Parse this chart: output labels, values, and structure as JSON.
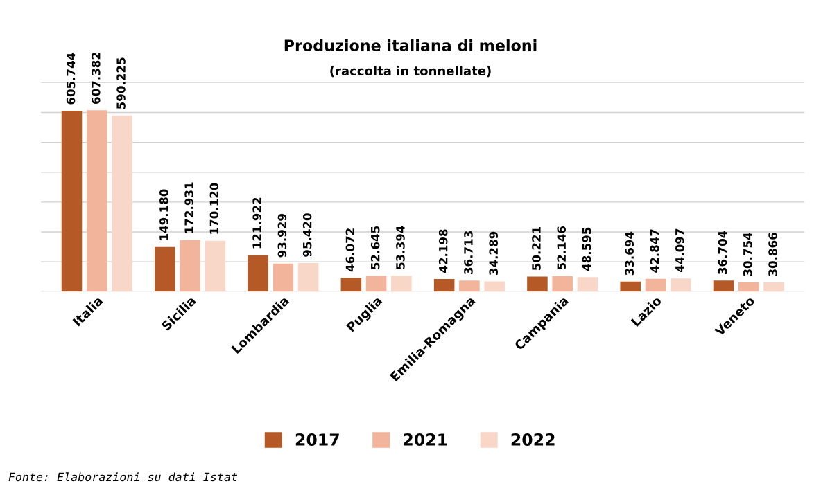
{
  "chart_data": {
    "type": "bar",
    "title": "Produzione italiana di meloni",
    "subtitle": "(raccolta in tonnellate)",
    "categories": [
      "Italia",
      "Sicilia",
      "Lombardia",
      "Puglia",
      "Emilia-Romagna",
      "Campania",
      "Lazio",
      "Veneto"
    ],
    "series": [
      {
        "name": "2017",
        "color": "#b55a26",
        "values": [
          605744,
          149180,
          121922,
          46072,
          42198,
          50221,
          33694,
          36704
        ],
        "value_labels": [
          "605.744",
          "149.180",
          "121.922",
          "46.072",
          "42.198",
          "50.221",
          "33.694",
          "36.704"
        ]
      },
      {
        "name": "2021",
        "color": "#f2b59c",
        "values": [
          607382,
          172931,
          93929,
          52645,
          36713,
          52146,
          42847,
          30754
        ],
        "value_labels": [
          "607.382",
          "172.931",
          "93.929",
          "52.645",
          "36.713",
          "52.146",
          "42.847",
          "30.754"
        ]
      },
      {
        "name": "2022",
        "color": "#f8d6c8",
        "values": [
          590225,
          170120,
          95420,
          53394,
          34289,
          48595,
          44097,
          30866
        ],
        "value_labels": [
          "590.225",
          "170.120",
          "95.420",
          "53.394",
          "34.289",
          "48.595",
          "44.097",
          "30.866"
        ]
      }
    ],
    "ylim": [
      0,
      700000
    ],
    "yticks": [
      {
        "value": 0,
        "label": null
      },
      {
        "value": 100000,
        "label": null
      },
      {
        "value": 200000,
        "label": null
      },
      {
        "value": 300000,
        "label": null
      },
      {
        "value": 400000,
        "label": null
      },
      {
        "value": 500000,
        "label": null
      },
      {
        "value": 600000,
        "label": null
      },
      {
        "value": 700000,
        "label": null
      }
    ],
    "tick_labels": "x",
    "grid": "y",
    "legend": "bottom",
    "annotations": [
      "Fonte: Elaborazioni su dati Istat"
    ]
  }
}
